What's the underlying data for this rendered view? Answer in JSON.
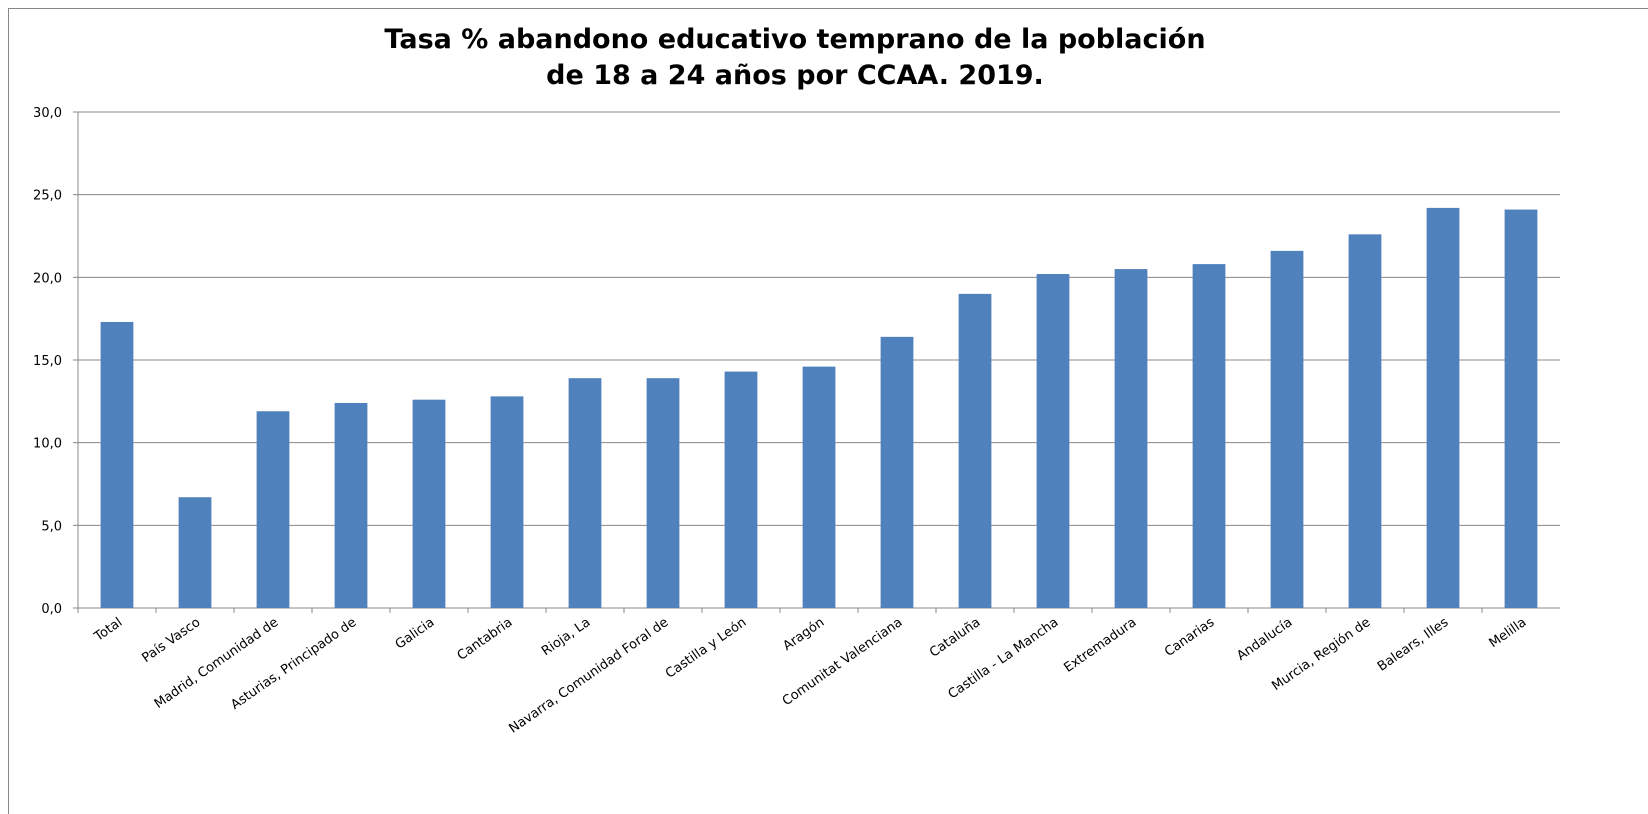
{
  "chart_data": {
    "type": "bar",
    "title": [
      "Tasa % abandono educativo temprano de la población",
      "de 18 a 24 años  por CCAA. 2019."
    ],
    "categories": [
      "Total",
      "País Vasco",
      "Madrid, Comunidad de",
      "Asturias, Principado de",
      "Galicia",
      "Cantabria",
      "Rioja, La",
      "Navarra, Comunidad Foral de",
      "Castilla y León",
      "Aragón",
      "Comunitat Valenciana",
      "Cataluña",
      "Castilla - La Mancha",
      "Extremadura",
      "Canarias",
      "Andalucía",
      "Murcia, Región de",
      "Balears, Illes",
      "Melilla"
    ],
    "values": [
      17.3,
      6.7,
      11.9,
      12.4,
      12.6,
      12.8,
      13.9,
      13.9,
      14.3,
      14.6,
      16.4,
      19.0,
      20.2,
      20.5,
      20.8,
      21.6,
      22.6,
      24.2,
      24.1
    ],
    "color": "#4f81bd",
    "ylim": [
      0,
      30
    ],
    "yticks": [
      {
        "value": 0,
        "label": "0,0"
      },
      {
        "value": 5,
        "label": "5,0"
      },
      {
        "value": 10,
        "label": "10,0"
      },
      {
        "value": 15,
        "label": "15,0"
      },
      {
        "value": 20,
        "label": "20,0"
      },
      {
        "value": 25,
        "label": "25,0"
      },
      {
        "value": 30,
        "label": "30,0"
      }
    ],
    "grid": true
  }
}
